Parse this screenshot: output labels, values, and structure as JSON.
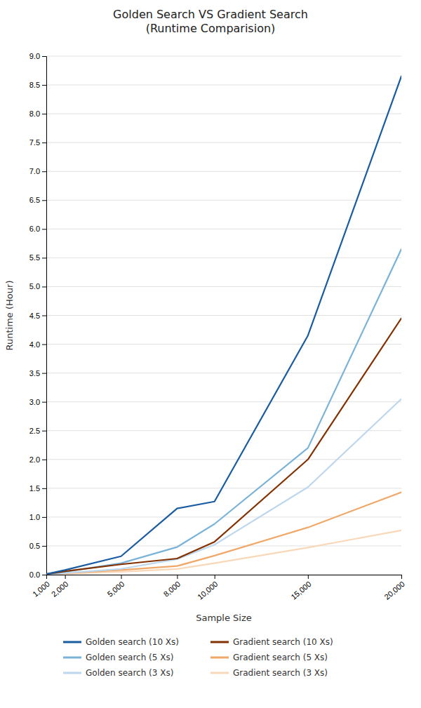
{
  "chart_data": {
    "type": "line",
    "title": "Golden Search VS Gradient Search\n(Runtime Comparision)",
    "x_label": "Sample Size",
    "y_label": "Runtime (Hour)",
    "x": [
      1000,
      2000,
      5000,
      8000,
      10000,
      15000,
      20000
    ],
    "xlim": [
      1000,
      20000
    ],
    "xticks": [
      {
        "value": 1000,
        "label": "1,000"
      },
      {
        "value": 2000,
        "label": "2,000"
      },
      {
        "value": 5000,
        "label": "5,000"
      },
      {
        "value": 8000,
        "label": "8,000"
      },
      {
        "value": 10000,
        "label": "10,000"
      },
      {
        "value": 15000,
        "label": "15,000"
      },
      {
        "value": 20000,
        "label": "20,000"
      }
    ],
    "ylim": [
      0,
      9
    ],
    "yticks": [
      {
        "value": 0,
        "label": "0.0"
      },
      0.5,
      {
        "value": 1,
        "label": "1.0"
      },
      1.5,
      {
        "value": 2,
        "label": "2.0"
      },
      2.5,
      {
        "value": 3,
        "label": "3.0"
      },
      3.5,
      {
        "value": 4,
        "label": "4.0"
      },
      4.5,
      {
        "value": 5,
        "label": "5.0"
      },
      5.5,
      {
        "value": 6,
        "label": "6.0"
      },
      6.5,
      {
        "value": 7,
        "label": "7.0"
      },
      7.5,
      {
        "value": 8,
        "label": "8.0"
      },
      8.5,
      {
        "value": 9,
        "label": "9.0"
      }
    ],
    "grid": true,
    "legend": "bottom",
    "series": [
      {
        "name": "Gradient search (3 Xs)",
        "color": "#f8d8b8",
        "values": [
          0.002,
          0.015,
          0.05,
          0.1,
          0.2,
          0.47,
          0.77
        ]
      },
      {
        "name": "Gradient search (5 Xs)",
        "color": "#f0a868",
        "values": [
          0.003,
          0.025,
          0.08,
          0.15,
          0.33,
          0.82,
          1.43
        ]
      },
      {
        "name": "Golden search (3 Xs)",
        "color": "#bdd7ee",
        "values": [
          0.003,
          0.03,
          0.1,
          0.27,
          0.52,
          1.52,
          3.05
        ]
      },
      {
        "name": "Golden search (5 Xs)",
        "color": "#7ab3d8",
        "values": [
          0.005,
          0.05,
          0.2,
          0.48,
          0.88,
          2.2,
          5.65
        ]
      },
      {
        "name": "Gradient search (10 Xs)",
        "color": "#833100",
        "values": [
          0.01,
          0.06,
          0.18,
          0.28,
          0.57,
          2.0,
          4.45
        ]
      },
      {
        "name": "Golden search (10 Xs)",
        "color": "#1a5ca0",
        "values": [
          0.01,
          0.08,
          0.32,
          1.15,
          1.27,
          4.15,
          8.65
        ]
      }
    ]
  }
}
